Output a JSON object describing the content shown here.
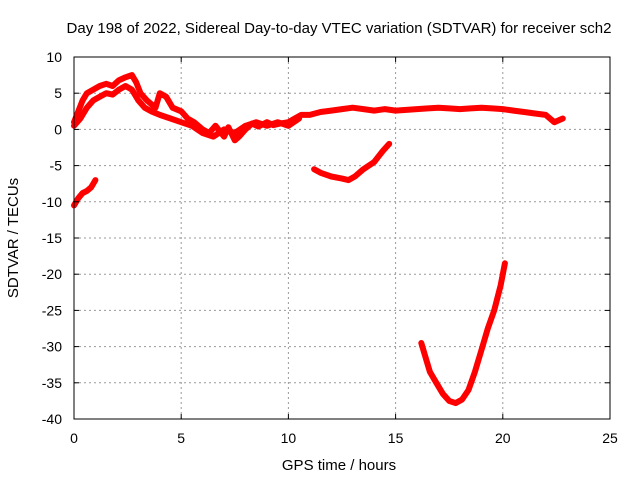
{
  "chart_data": {
    "type": "line",
    "title": "Day 198 of 2022, Sidereal Day-to-day VTEC variation (SDTVAR) for receiver sch2",
    "xlabel": "GPS time / hours",
    "ylabel": "SDTVAR / TECUs",
    "xlim": [
      0,
      25
    ],
    "ylim": [
      -40,
      10
    ],
    "xticks": [
      0,
      5,
      10,
      15,
      20,
      25
    ],
    "yticks": [
      10,
      5,
      0,
      -5,
      -10,
      -15,
      -20,
      -25,
      -30,
      -35,
      -40
    ],
    "grid": true,
    "series": [
      {
        "name": "arc-main",
        "color": "#ff0000",
        "points": [
          [
            0.0,
            1.0
          ],
          [
            0.2,
            2.5
          ],
          [
            0.4,
            4.0
          ],
          [
            0.6,
            5.0
          ],
          [
            0.9,
            5.5
          ],
          [
            1.2,
            6.0
          ],
          [
            1.5,
            6.3
          ],
          [
            1.8,
            6.0
          ],
          [
            2.1,
            6.8
          ],
          [
            2.4,
            7.2
          ],
          [
            2.7,
            7.5
          ],
          [
            2.9,
            6.5
          ],
          [
            3.1,
            5.0
          ],
          [
            3.4,
            4.0
          ],
          [
            3.8,
            3.0
          ],
          [
            4.0,
            5.0
          ],
          [
            4.3,
            4.5
          ],
          [
            4.6,
            3.0
          ],
          [
            5.0,
            2.5
          ],
          [
            5.3,
            1.5
          ],
          [
            5.6,
            1.0
          ],
          [
            6.0,
            0.0
          ],
          [
            6.3,
            -0.5
          ],
          [
            6.6,
            0.5
          ],
          [
            7.0,
            -1.0
          ],
          [
            7.2,
            0.3
          ],
          [
            7.5,
            -1.5
          ],
          [
            7.7,
            -1.0
          ],
          [
            8.0,
            0.0
          ],
          [
            8.3,
            0.8
          ],
          [
            8.6,
            0.4
          ],
          [
            9.0,
            1.0
          ],
          [
            9.3,
            0.6
          ],
          [
            9.6,
            0.8
          ],
          [
            10.0,
            1.0
          ],
          [
            10.3,
            1.5
          ],
          [
            10.6,
            2.0
          ],
          [
            11.0,
            2.0
          ],
          [
            11.5,
            2.4
          ],
          [
            12.0,
            2.6
          ],
          [
            12.5,
            2.8
          ],
          [
            13.0,
            3.0
          ],
          [
            13.5,
            2.8
          ],
          [
            14.0,
            2.6
          ],
          [
            14.5,
            2.8
          ],
          [
            15.0,
            2.6
          ],
          [
            15.5,
            2.7
          ],
          [
            16.0,
            2.8
          ],
          [
            16.5,
            2.9
          ],
          [
            17.0,
            3.0
          ],
          [
            17.5,
            2.9
          ],
          [
            18.0,
            2.8
          ],
          [
            18.5,
            2.9
          ],
          [
            19.0,
            3.0
          ],
          [
            19.5,
            2.9
          ],
          [
            20.0,
            2.8
          ],
          [
            20.5,
            2.6
          ],
          [
            21.0,
            2.4
          ],
          [
            21.5,
            2.2
          ],
          [
            22.0,
            2.0
          ],
          [
            22.4,
            1.0
          ],
          [
            22.8,
            1.5
          ]
        ]
      },
      {
        "name": "arc-main-b",
        "color": "#ff0000",
        "points": [
          [
            0.0,
            0.5
          ],
          [
            0.3,
            1.5
          ],
          [
            0.6,
            3.0
          ],
          [
            0.9,
            4.0
          ],
          [
            1.2,
            4.5
          ],
          [
            1.5,
            5.0
          ],
          [
            1.8,
            4.8
          ],
          [
            2.1,
            5.5
          ],
          [
            2.4,
            6.0
          ],
          [
            2.7,
            5.5
          ],
          [
            3.0,
            4.0
          ],
          [
            3.3,
            3.0
          ],
          [
            3.6,
            2.5
          ],
          [
            4.0,
            2.0
          ],
          [
            4.5,
            1.5
          ],
          [
            5.0,
            1.0
          ],
          [
            5.5,
            0.5
          ],
          [
            6.0,
            -0.5
          ],
          [
            6.5,
            -1.0
          ],
          [
            7.0,
            0.0
          ],
          [
            7.5,
            -0.5
          ],
          [
            8.0,
            0.5
          ],
          [
            8.5,
            1.0
          ],
          [
            9.0,
            0.5
          ],
          [
            9.5,
            1.0
          ],
          [
            10.0,
            0.5
          ],
          [
            10.5,
            1.5
          ]
        ]
      },
      {
        "name": "arc-early-negative",
        "color": "#ff0000",
        "points": [
          [
            0.0,
            -10.5
          ],
          [
            0.2,
            -9.5
          ],
          [
            0.4,
            -8.8
          ],
          [
            0.6,
            -8.5
          ],
          [
            0.8,
            -8.0
          ],
          [
            1.0,
            -7.0
          ]
        ]
      },
      {
        "name": "arc-midday",
        "color": "#ff0000",
        "points": [
          [
            11.2,
            -5.5
          ],
          [
            11.5,
            -6.0
          ],
          [
            12.0,
            -6.5
          ],
          [
            12.5,
            -6.8
          ],
          [
            12.8,
            -7.0
          ],
          [
            13.1,
            -6.5
          ],
          [
            13.5,
            -5.5
          ],
          [
            14.0,
            -4.5
          ],
          [
            14.4,
            -3.0
          ],
          [
            14.7,
            -2.0
          ]
        ]
      },
      {
        "name": "arc-deep",
        "color": "#ff0000",
        "points": [
          [
            16.2,
            -29.5
          ],
          [
            16.4,
            -31.5
          ],
          [
            16.6,
            -33.5
          ],
          [
            16.9,
            -35.0
          ],
          [
            17.2,
            -36.5
          ],
          [
            17.5,
            -37.5
          ],
          [
            17.8,
            -37.8
          ],
          [
            18.1,
            -37.3
          ],
          [
            18.4,
            -36.0
          ],
          [
            18.7,
            -33.5
          ],
          [
            19.0,
            -30.5
          ],
          [
            19.3,
            -27.5
          ],
          [
            19.6,
            -25.0
          ],
          [
            19.9,
            -21.5
          ],
          [
            20.1,
            -18.5
          ]
        ]
      }
    ]
  }
}
